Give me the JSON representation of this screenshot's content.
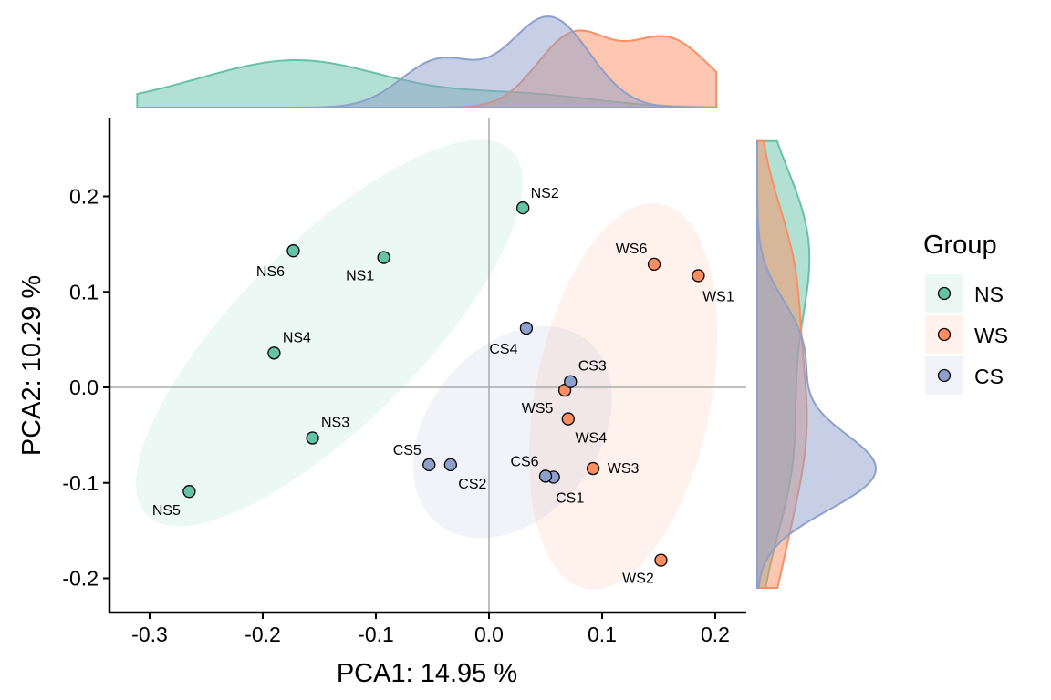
{
  "chart_data": {
    "type": "scatter",
    "xlabel": "PCA1:  14.95 %",
    "ylabel": "PCA2:  10.29 %",
    "xlim": [
      -0.3355,
      0.2274
    ],
    "ylim": [
      -0.236,
      0.2816
    ],
    "xticks": [
      -0.3,
      -0.2,
      -0.1,
      0.0,
      0.1,
      0.2
    ],
    "xtick_labels": [
      "-0.3",
      "-0.2",
      "-0.1",
      "0.0",
      "0.1",
      "0.2"
    ],
    "yticks": [
      -0.2,
      -0.1,
      0.0,
      0.1,
      0.2
    ],
    "ytick_labels": [
      "-0.2",
      "-0.1",
      "0.0",
      "0.1",
      "0.2"
    ],
    "grid": false,
    "reference_lines": {
      "x": 0,
      "y": 0
    },
    "ellipses": true,
    "marginal_density": true,
    "legend": {
      "title": "Group",
      "placement": "right"
    },
    "series": [
      {
        "name": "NS",
        "color": "#66C2A5",
        "points": [
          {
            "label": "NS1",
            "x": -0.093,
            "y": 0.136
          },
          {
            "label": "NS2",
            "x": 0.03,
            "y": 0.188
          },
          {
            "label": "NS3",
            "x": -0.156,
            "y": -0.053
          },
          {
            "label": "NS4",
            "x": -0.19,
            "y": 0.036
          },
          {
            "label": "NS5",
            "x": -0.265,
            "y": -0.109
          },
          {
            "label": "NS6",
            "x": -0.173,
            "y": 0.143
          }
        ]
      },
      {
        "name": "WS",
        "color": "#FC8D62",
        "points": [
          {
            "label": "WS1",
            "x": 0.185,
            "y": 0.117
          },
          {
            "label": "WS2",
            "x": 0.152,
            "y": -0.181
          },
          {
            "label": "WS3",
            "x": 0.092,
            "y": -0.085
          },
          {
            "label": "WS4",
            "x": 0.07,
            "y": -0.033
          },
          {
            "label": "WS5",
            "x": 0.067,
            "y": -0.003
          },
          {
            "label": "WS6",
            "x": 0.146,
            "y": 0.129
          }
        ]
      },
      {
        "name": "CS",
        "color": "#8DA0CB",
        "points": [
          {
            "label": "CS1",
            "x": 0.057,
            "y": -0.094
          },
          {
            "label": "CS2",
            "x": -0.034,
            "y": -0.081
          },
          {
            "label": "CS3",
            "x": 0.072,
            "y": 0.006
          },
          {
            "label": "CS4",
            "x": 0.033,
            "y": 0.062
          },
          {
            "label": "CS5",
            "x": -0.053,
            "y": -0.081
          },
          {
            "label": "CS6",
            "x": 0.05,
            "y": -0.093
          }
        ]
      }
    ]
  }
}
